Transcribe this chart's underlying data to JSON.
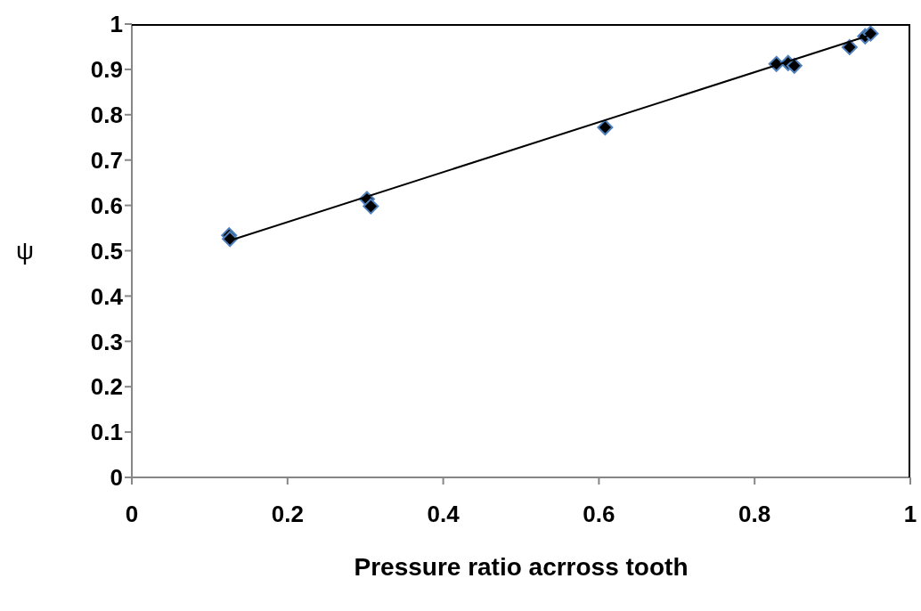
{
  "chart_data": {
    "type": "scatter",
    "xlabel": "Pressure ratio acrross tooth",
    "ylabel": "ψ",
    "series": [
      {
        "marker": "diamond",
        "color": "#000000",
        "x": [
          0.125,
          0.126,
          0.302,
          0.307,
          0.608,
          0.828,
          0.843,
          0.851,
          0.922,
          0.942,
          0.949
        ],
        "values": [
          0.534,
          0.526,
          0.614,
          0.598,
          0.772,
          0.912,
          0.914,
          0.908,
          0.949,
          0.973,
          0.979
        ]
      },
      {
        "type": "line",
        "marker": "none",
        "color": "#000000",
        "x": [
          0.127,
          0.949
        ],
        "values": [
          0.523,
          0.976
        ]
      }
    ],
    "xlim": [
      0,
      1
    ],
    "xticks": [
      0,
      0.2,
      0.4,
      0.6,
      0.8,
      1
    ],
    "ylim": [
      0,
      1
    ],
    "yticks": [
      0,
      0.1,
      0.2,
      0.3,
      0.4,
      0.5,
      0.6,
      0.7,
      0.8,
      0.9,
      1
    ],
    "grid": false
  }
}
